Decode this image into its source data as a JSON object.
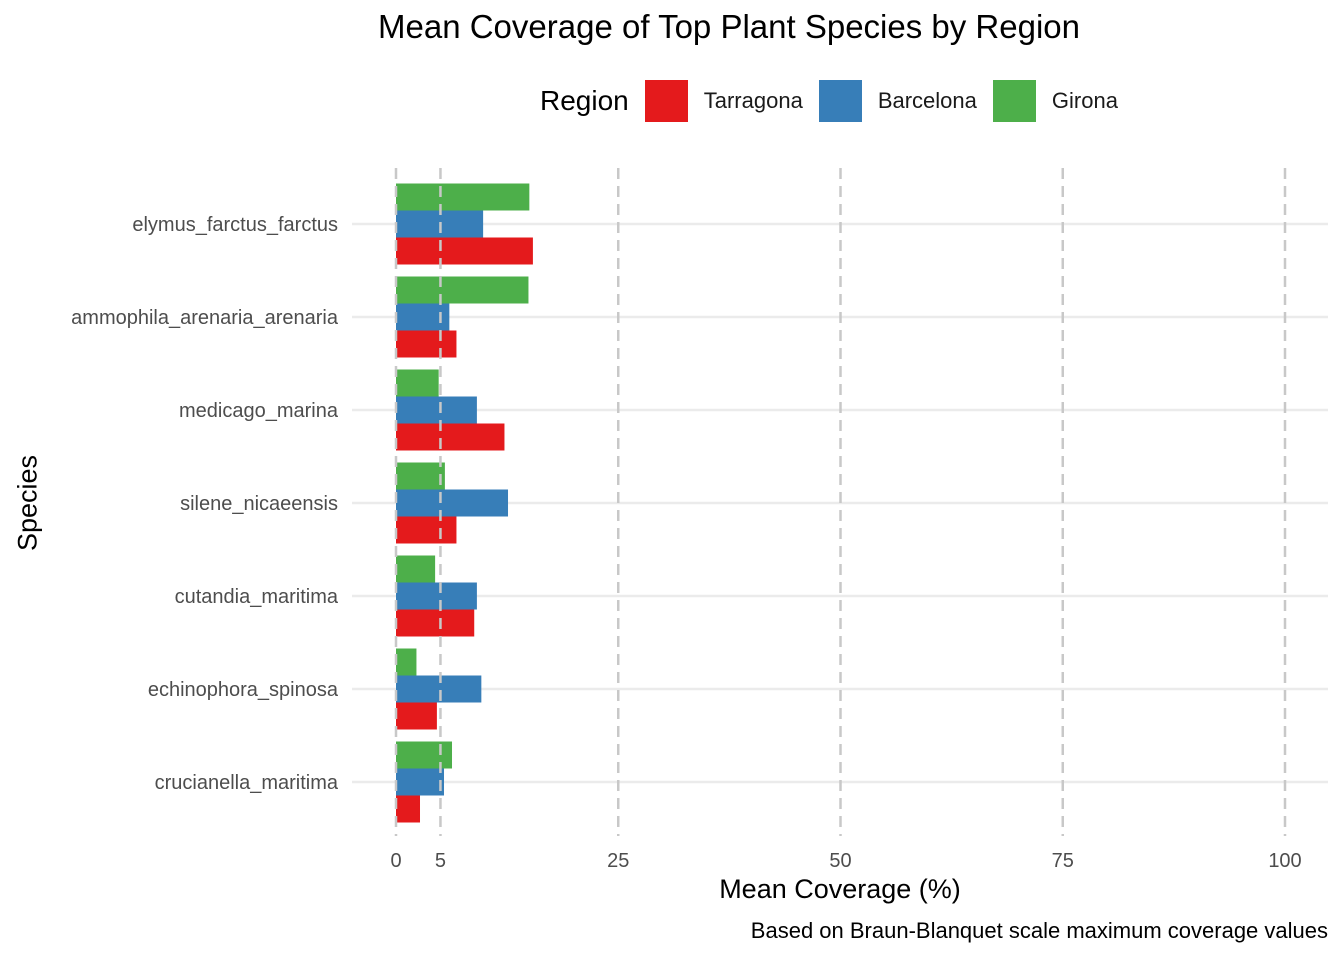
{
  "chart_data": {
    "type": "bar",
    "orientation": "horizontal",
    "title": "Mean Coverage of Top Plant Species by Region",
    "xlabel": "Mean Coverage (%)",
    "ylabel": "Species",
    "caption": "Based on Braun-Blanquet scale maximum coverage values",
    "legend_title": "Region",
    "legend_position": "top",
    "xlim": [
      0,
      100
    ],
    "xticks": [
      0,
      5,
      25,
      50,
      75,
      100
    ],
    "x_grid": "dashed",
    "y_grid": true,
    "categories": [
      "elymus_farctus_farctus",
      "ammophila_arenaria_arenaria",
      "medicago_marina",
      "silene_nicaeensis",
      "cutandia_maritima",
      "echinophora_spinosa",
      "crucianella_maritima"
    ],
    "series": [
      {
        "name": "Tarragona",
        "color": "#E41A1C",
        "values": [
          15.4,
          6.8,
          12.2,
          6.8,
          8.8,
          4.6,
          2.7
        ]
      },
      {
        "name": "Barcelona",
        "color": "#377EB8",
        "values": [
          9.8,
          6.0,
          9.1,
          12.6,
          9.1,
          9.6,
          5.4
        ]
      },
      {
        "name": "Girona",
        "color": "#4DAF4A",
        "values": [
          15.0,
          14.9,
          4.8,
          5.5,
          4.4,
          2.3,
          6.3
        ]
      }
    ]
  }
}
